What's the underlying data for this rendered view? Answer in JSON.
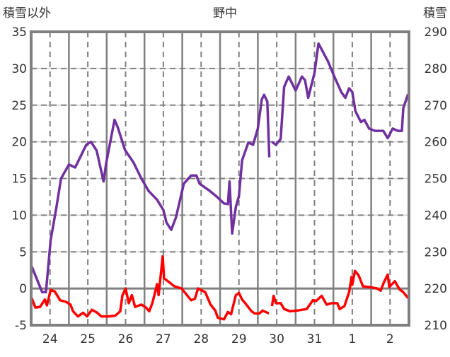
{
  "chart_data": {
    "type": "line",
    "title": "野中",
    "ylabel_left": "積雪以外",
    "ylabel_right": "積雪",
    "ylim_left": [
      -5,
      35
    ],
    "ylim_right": [
      210,
      290
    ],
    "yticks_left": [
      "35",
      "30",
      "25",
      "20",
      "15",
      "10",
      "5",
      "0",
      "-5"
    ],
    "yticks_right": [
      "290",
      "280",
      "270",
      "260",
      "250",
      "240",
      "230",
      "220",
      "210"
    ],
    "xlim_hours": [
      0,
      240
    ],
    "x_tick_labels": [
      "24",
      "25",
      "26",
      "27",
      "28",
      "29",
      "30",
      "31",
      "1",
      "2"
    ],
    "grid": true,
    "series": [
      {
        "name": "積雪",
        "axis": "right",
        "color": "#7030a0",
        "x": [
          0.4,
          7,
          9.4,
          12.4,
          16,
          19,
          24,
          28,
          35,
          38,
          41.6,
          46,
          47.6,
          53,
          55,
          59.6,
          65,
          70,
          74.6,
          80,
          84,
          86,
          89,
          92,
          97,
          101.6,
          105,
          107,
          113.5,
          118,
          122.5,
          125,
          126,
          127.7,
          130,
          132,
          134,
          138,
          141,
          144,
          146.5,
          148,
          150,
          151.3,
          152,
          153,
          155.5,
          158.5,
          160.7,
          163.6,
          168,
          172,
          174,
          176,
          180,
          182.5,
          188.5,
          193,
          197,
          199.6,
          202,
          204,
          206,
          209.5,
          211.7,
          214.7,
          218.4,
          223.7,
          226.5,
          229.6,
          233,
          235.5,
          236.4,
          239.4
        ],
        "y": [
          226,
          219,
          219,
          233.2,
          242,
          250,
          253.8,
          253,
          259.2,
          260,
          257.6,
          249.2,
          254,
          266,
          264,
          257.8,
          254.4,
          250,
          246.6,
          244.2,
          241.4,
          238,
          236,
          239.4,
          248.6,
          250.8,
          250.8,
          248.6,
          246.6,
          245,
          243.2,
          243,
          249.2,
          235,
          242.2,
          245.2,
          255,
          259.8,
          259.2,
          263.6,
          271.6,
          272.8,
          271,
          255.8,
          null,
          260,
          259.2,
          260.8,
          275,
          277.8,
          274,
          277.8,
          276.8,
          272,
          278.8,
          286.8,
          282,
          277.4,
          273.6,
          272,
          274.6,
          273.6,
          268.4,
          265.4,
          266,
          263.6,
          263,
          263,
          261,
          263.6,
          263,
          263,
          269.2,
          273
        ]
      },
      {
        "name": "積雪以外",
        "axis": "left",
        "color": "#ff0000",
        "x": [
          0.4,
          2.7,
          5.7,
          8.7,
          10,
          12.4,
          15,
          18.4,
          22,
          25,
          26.6,
          29.7,
          33,
          35.5,
          38.6,
          42,
          44.6,
          49,
          53.5,
          56.6,
          58,
          60,
          62,
          64,
          66,
          70,
          73,
          75,
          77,
          80,
          81,
          83.6,
          84.4,
          88,
          91,
          95.6,
          101.6,
          104,
          106,
          110.6,
          114,
          117,
          118.6,
          122.5,
          125,
          127,
          130,
          132,
          134,
          136,
          140,
          142,
          145,
          147,
          151,
          152,
          153,
          154,
          155.5,
          158.5,
          160.7,
          164.5,
          169,
          175,
          179,
          181,
          184.6,
          187.7,
          190.6,
          194.5,
          196,
          199,
          202,
          203.6,
          204,
          205.7,
          208,
          210.8,
          215,
          219.8,
          222,
          224,
          226.5,
          227.5,
          231,
          234,
          236.4,
          239.4
        ],
        "y": [
          -1.3,
          -2.6,
          -2.5,
          -1.5,
          -2.3,
          -0.2,
          -0.4,
          -1.6,
          -1.8,
          -2.2,
          -3.1,
          -3.8,
          -3.3,
          -3.8,
          -2.9,
          -3.3,
          -3.8,
          -3.8,
          -3.7,
          -3.1,
          -0.9,
          0,
          -2,
          -0.9,
          -2.5,
          -2.2,
          -2.6,
          -3.1,
          -2,
          0.6,
          -0.9,
          4.4,
          1.4,
          0.8,
          0.3,
          0,
          -1.6,
          -1.4,
          0,
          -0.5,
          -2.2,
          -3,
          -4,
          -4.2,
          -3.2,
          -3.5,
          -0.9,
          -0.6,
          -1.5,
          -2,
          -3.1,
          -3.4,
          -3.4,
          -3,
          -3.4,
          null,
          -2.4,
          -1,
          -2,
          -2,
          -2.8,
          -3.1,
          -3,
          -2.8,
          -1.6,
          -1.7,
          -1,
          -2.2,
          -2,
          -2,
          -2.8,
          -2.4,
          -0.5,
          1.6,
          0.5,
          2.4,
          1.8,
          0.3,
          0.2,
          0,
          -0.3,
          0.8,
          1.9,
          0.2,
          1,
          -0.1,
          -0.5,
          -1.3
        ]
      }
    ]
  }
}
